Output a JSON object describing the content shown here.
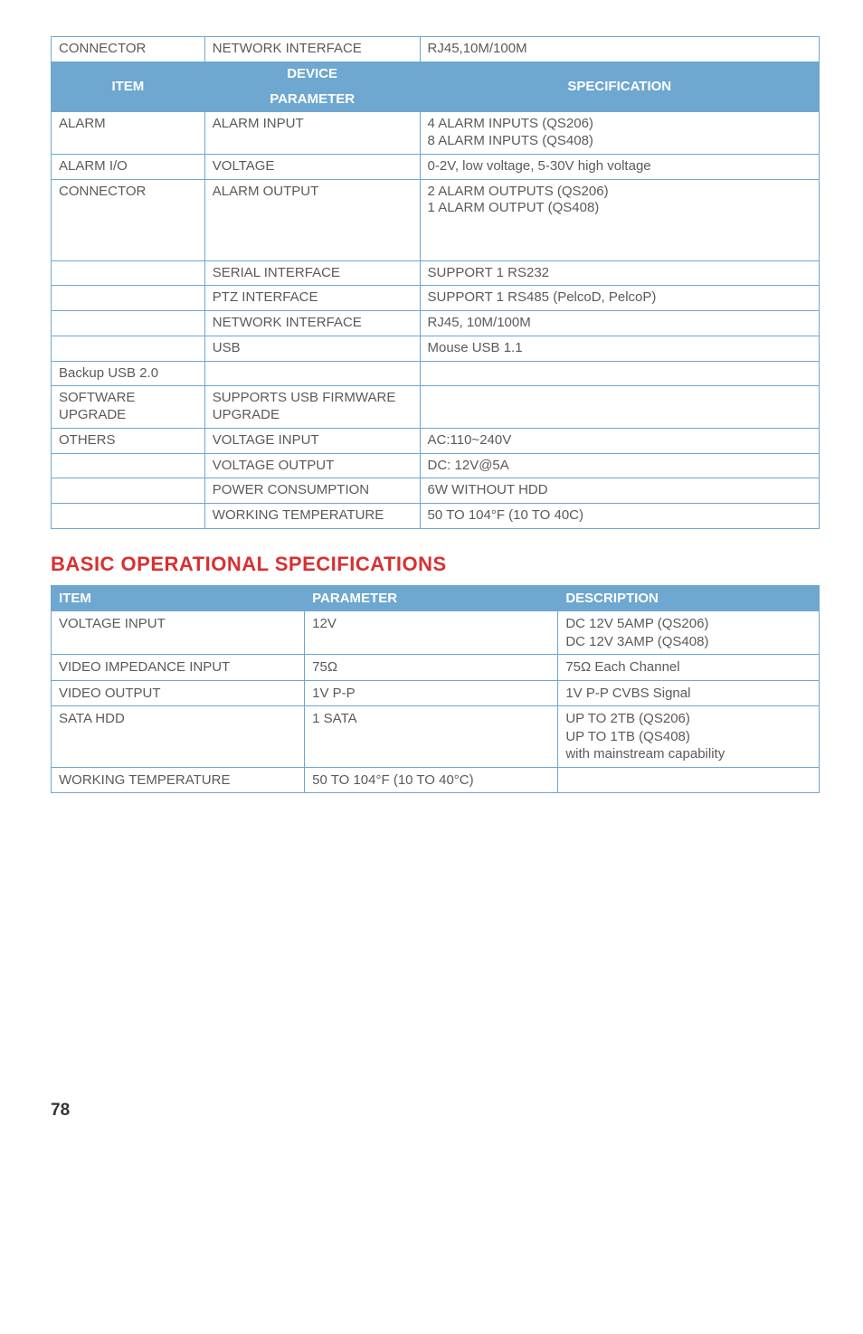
{
  "table1": {
    "headers": {
      "item": "ITEM",
      "device": "DEVICE",
      "parameter": "PARAMETER",
      "spec": "SPECIFICATION"
    },
    "rows": {
      "r0": {
        "c0": "CONNECTOR",
        "c1": "NETWORK INTERFACE",
        "c2": "RJ45,10M/100M"
      },
      "r2": {
        "c0": "ALARM",
        "c1": "ALARM INPUT",
        "c2a": "4 ALARM INPUTS (QS206)",
        "c2b": "8 ALARM INPUTS (QS408)"
      },
      "r3": {
        "c0": "ALARM I/O",
        "c1": "VOLTAGE",
        "c2": "0-2V, low voltage, 5-30V high voltage"
      },
      "r4": {
        "c0": "CONNECTOR",
        "c1": "ALARM OUTPUT",
        "c2a": "2 ALARM OUTPUTS (QS206)",
        "c2b": "1 ALARM OUTPUT (QS408)"
      },
      "r5": {
        "c0": "",
        "c1": "SERIAL INTERFACE",
        "c2": "SUPPORT 1 RS232"
      },
      "r6": {
        "c0": "",
        "c1": "PTZ INTERFACE",
        "c2": "SUPPORT 1 RS485 (PelcoD, PelcoP)"
      },
      "r7": {
        "c0": "",
        "c1": "NETWORK INTERFACE",
        "c2": "RJ45, 10M/100M"
      },
      "r8": {
        "c0": "",
        "c1": "USB",
        "c2": "Mouse USB 1.1"
      },
      "r9": {
        "c0": "Backup USB 2.0",
        "c1": "",
        "c2": ""
      },
      "r10": {
        "c0": "SOFTWARE UPGRADE",
        "c1": "SUPPORTS USB FIRMWARE UPGRADE",
        "c2": ""
      },
      "r11": {
        "c0": "OTHERS",
        "c1": "VOLTAGE INPUT",
        "c2": "AC:110~240V"
      },
      "r12": {
        "c0": "",
        "c1": "VOLTAGE OUTPUT",
        "c2": "DC: 12V@5A"
      },
      "r13": {
        "c0": "",
        "c1": "POWER CONSUMPTION",
        "c2": "6W WITHOUT HDD"
      },
      "r14": {
        "c0": "",
        "c1": "WORKING TEMPERATURE",
        "c2": "50 TO 104°F (10 TO 40C)"
      }
    }
  },
  "section_title": "BASIC OPERATIONAL SPECIFICATIONS",
  "table2": {
    "headers": {
      "item": "ITEM",
      "parameter": "PARAMETER",
      "description": "DESCRIPTION"
    },
    "rows": {
      "r0": {
        "c0": "VOLTAGE INPUT",
        "c1": "12V",
        "c2a": "DC 12V 5AMP (QS206)",
        "c2b": "DC 12V 3AMP (QS408)"
      },
      "r1": {
        "c0": "VIDEO IMPEDANCE INPUT",
        "c1": "75Ω",
        "c2": "75Ω Each Channel"
      },
      "r2": {
        "c0": "VIDEO OUTPUT",
        "c1": "1V P-P",
        "c2": "1V P-P CVBS Signal"
      },
      "r3": {
        "c0": "SATA HDD",
        "c1": "1 SATA",
        "c2a": "UP TO 2TB (QS206)",
        "c2b": "UP TO 1TB (QS408)",
        "c2c": "with mainstream capability"
      },
      "r4": {
        "c0": "WORKING TEMPERATURE",
        "c1": "50 TO 104°F  (10 TO 40°C)",
        "c2": ""
      }
    }
  },
  "page_number": "78"
}
